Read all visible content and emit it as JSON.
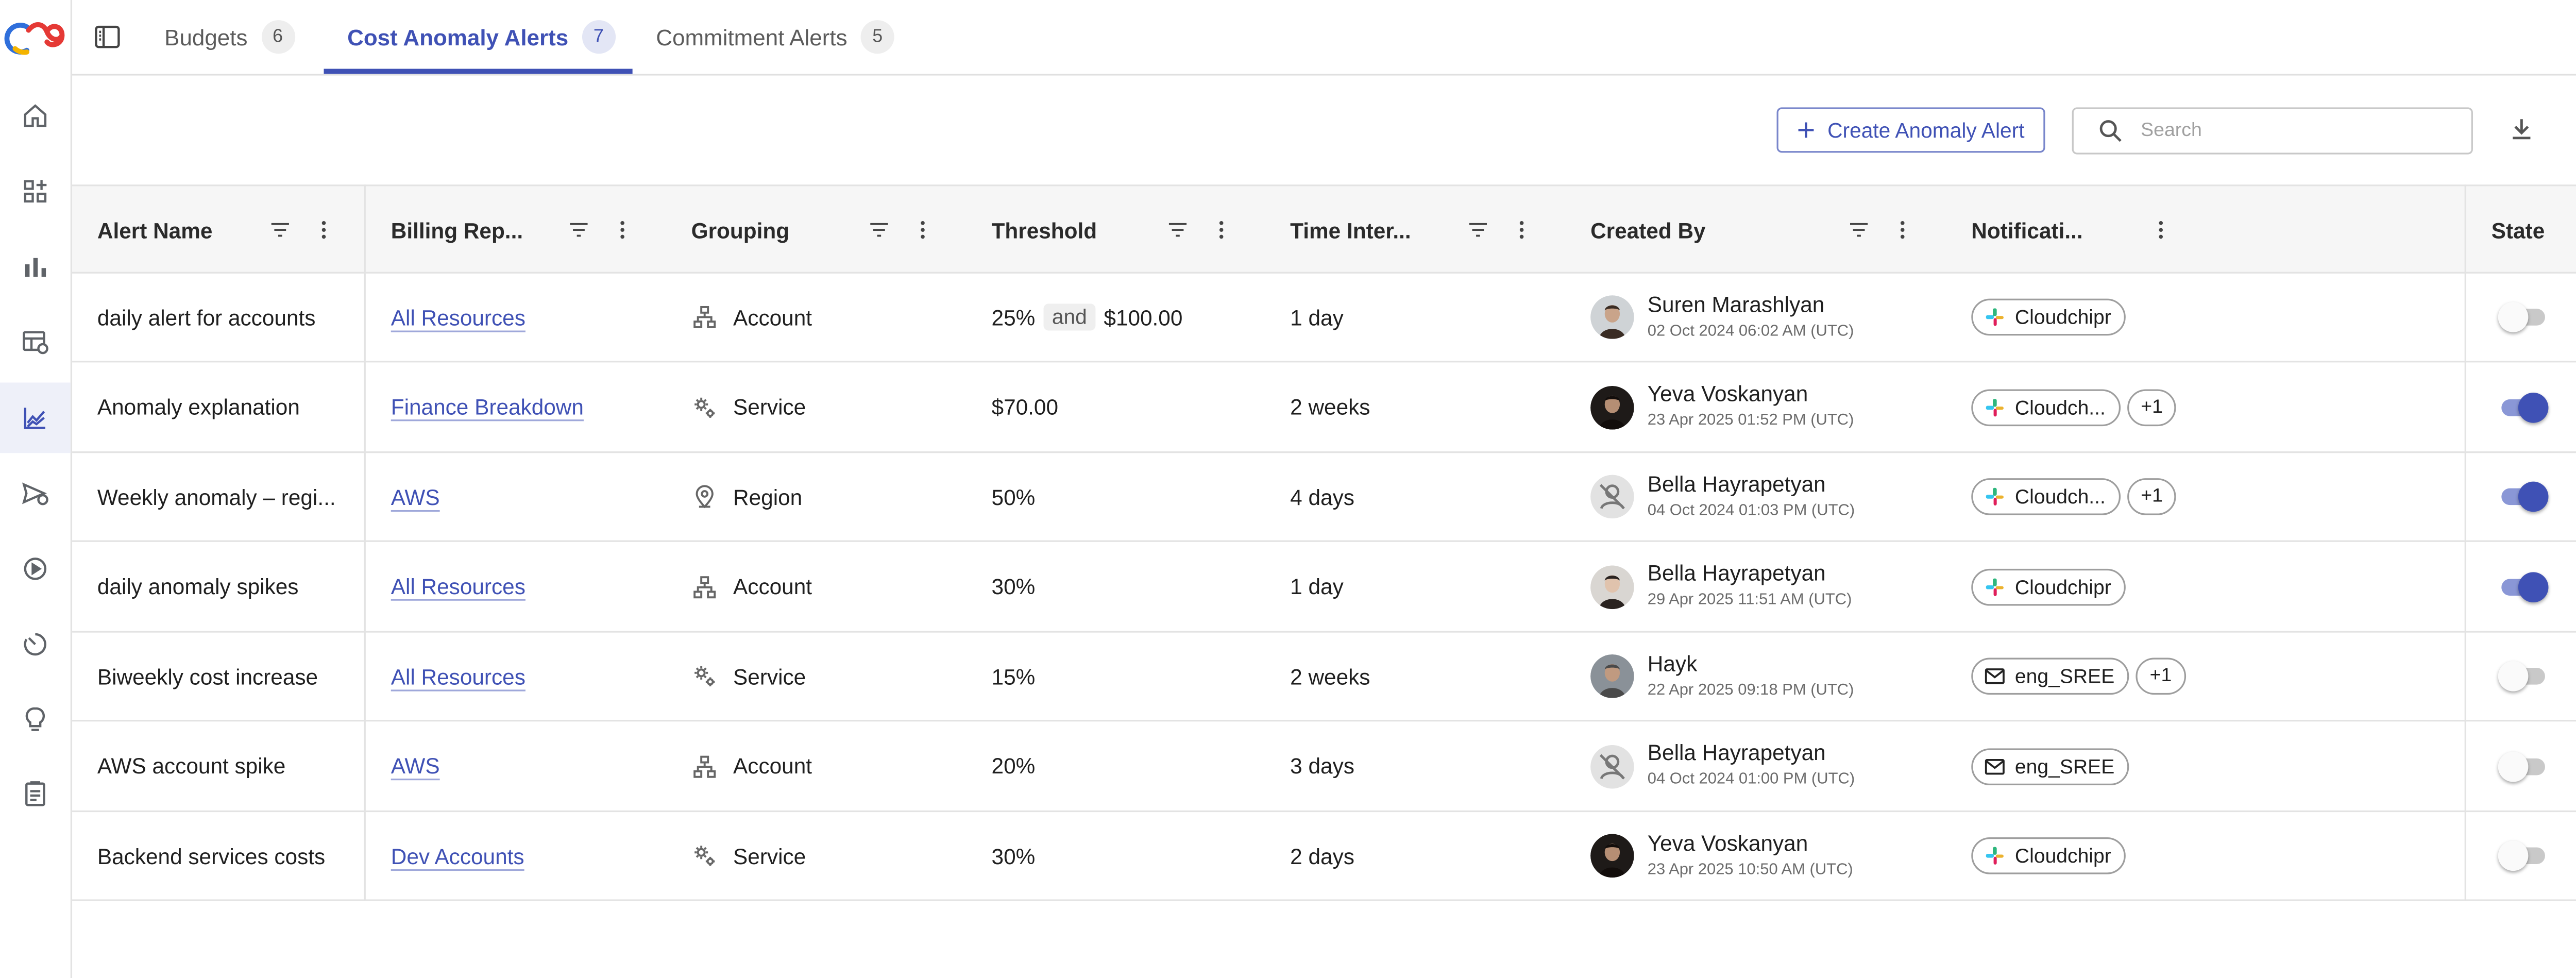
{
  "tabs": [
    {
      "label": "Budgets",
      "count": "6"
    },
    {
      "label": "Cost Anomaly Alerts",
      "count": "7"
    },
    {
      "label": "Commitment Alerts",
      "count": "5"
    }
  ],
  "toolbar": {
    "create_label": "Create Anomaly Alert",
    "search_placeholder": "Search"
  },
  "columns": {
    "alert_name": "Alert Name",
    "billing_report": "Billing Rep...",
    "grouping": "Grouping",
    "threshold": "Threshold",
    "time_interval": "Time Inter...",
    "created_by": "Created By",
    "notifications": "Notificati...",
    "state": "State"
  },
  "rows": [
    {
      "name": "daily alert for accounts",
      "billing": "All Resources",
      "grouping": "Account",
      "grouping_icon": "account-tree-icon",
      "threshold": "25%",
      "threshold_and": "and",
      "threshold_amount": "$100.00",
      "interval": "1 day",
      "creator": "Suren Marashlyan",
      "created": "02 Oct 2024 06:02 AM (UTC)",
      "avatar": "photo",
      "notif": "Cloudchipr",
      "notif_icon": "slack-icon",
      "notif_more": "",
      "state_on": false
    },
    {
      "name": "Anomaly explanation",
      "billing": "Finance Breakdown",
      "grouping": "Service",
      "grouping_icon": "service-gears-icon",
      "threshold": "$70.00",
      "threshold_and": "",
      "threshold_amount": "",
      "interval": "2 weeks",
      "creator": "Yeva Voskanyan",
      "created": "23 Apr 2025 01:52 PM (UTC)",
      "avatar": "photo-dark",
      "notif": "Cloudch...",
      "notif_icon": "slack-icon",
      "notif_more": "+1",
      "state_on": true
    },
    {
      "name": "Weekly anomaly – regi...",
      "billing": "AWS",
      "grouping": "Region",
      "grouping_icon": "location-pin-icon",
      "threshold": "50%",
      "threshold_and": "",
      "threshold_amount": "",
      "interval": "4 days",
      "creator": "Bella Hayrapetyan",
      "created": "04 Oct 2024 01:03 PM (UTC)",
      "avatar": "placeholder",
      "notif": "Cloudch...",
      "notif_icon": "slack-icon",
      "notif_more": "+1",
      "state_on": true
    },
    {
      "name": "daily anomaly spikes",
      "billing": "All Resources",
      "grouping": "Account",
      "grouping_icon": "account-tree-icon",
      "threshold": "30%",
      "threshold_and": "",
      "threshold_amount": "",
      "interval": "1 day",
      "creator": "Bella Hayrapetyan",
      "created": "29 Apr 2025 11:51 AM (UTC)",
      "avatar": "photo-light",
      "notif": "Cloudchipr",
      "notif_icon": "slack-icon",
      "notif_more": "",
      "state_on": true
    },
    {
      "name": "Biweekly cost increase",
      "billing": "All Resources",
      "grouping": "Service",
      "grouping_icon": "service-gears-icon",
      "threshold": "15%",
      "threshold_and": "",
      "threshold_amount": "",
      "interval": "2 weeks",
      "creator": "Hayk",
      "created": "22 Apr 2025 09:18 PM (UTC)",
      "avatar": "photo-gray",
      "notif": "eng_SREE",
      "notif_icon": "email-icon",
      "notif_more": "+1",
      "state_on": false
    },
    {
      "name": "AWS account spike",
      "billing": "AWS",
      "grouping": "Account",
      "grouping_icon": "account-tree-icon",
      "threshold": "20%",
      "threshold_and": "",
      "threshold_amount": "",
      "interval": "3 days",
      "creator": "Bella Hayrapetyan",
      "created": "04 Oct 2024 01:00 PM (UTC)",
      "avatar": "placeholder",
      "notif": "eng_SREE",
      "notif_icon": "email-icon",
      "notif_more": "",
      "state_on": false
    },
    {
      "name": "Backend services costs",
      "billing": "Dev Accounts",
      "grouping": "Service",
      "grouping_icon": "service-gears-icon",
      "threshold": "30%",
      "threshold_and": "",
      "threshold_amount": "",
      "interval": "2 days",
      "creator": "Yeva Voskanyan",
      "created": "23 Apr 2025 10:50 AM (UTC)",
      "avatar": "photo-dark",
      "notif": "Cloudchipr",
      "notif_icon": "slack-icon",
      "notif_more": "",
      "state_on": false
    }
  ],
  "colors": {
    "accent": "#3f51b5",
    "border": "#e3e3e3",
    "header_bg": "#f6f6f6"
  }
}
